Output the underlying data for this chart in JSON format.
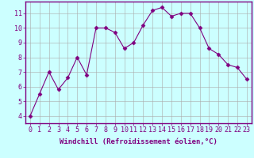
{
  "x": [
    0,
    1,
    2,
    3,
    4,
    5,
    6,
    7,
    8,
    9,
    10,
    11,
    12,
    13,
    14,
    15,
    16,
    17,
    18,
    19,
    20,
    21,
    22,
    23
  ],
  "y": [
    4.0,
    5.5,
    7.0,
    5.8,
    6.6,
    8.0,
    6.8,
    10.0,
    10.0,
    9.7,
    8.6,
    9.0,
    10.2,
    11.2,
    11.4,
    10.8,
    11.0,
    11.0,
    10.0,
    8.6,
    8.2,
    7.5,
    7.3,
    6.5
  ],
  "line_color": "#800080",
  "marker": "D",
  "marker_size": 2.5,
  "bg_color": "#ccffff",
  "grid_color": "#aaaaaa",
  "xlabel": "Windchill (Refroidissement éolien,°C)",
  "ylabel_ticks": [
    4,
    5,
    6,
    7,
    8,
    9,
    10,
    11
  ],
  "xlim": [
    -0.5,
    23.5
  ],
  "ylim": [
    3.5,
    11.8
  ],
  "tick_fontsize": 6,
  "xlabel_fontsize": 6.5,
  "spine_color": "#800080",
  "label_color": "#800080"
}
